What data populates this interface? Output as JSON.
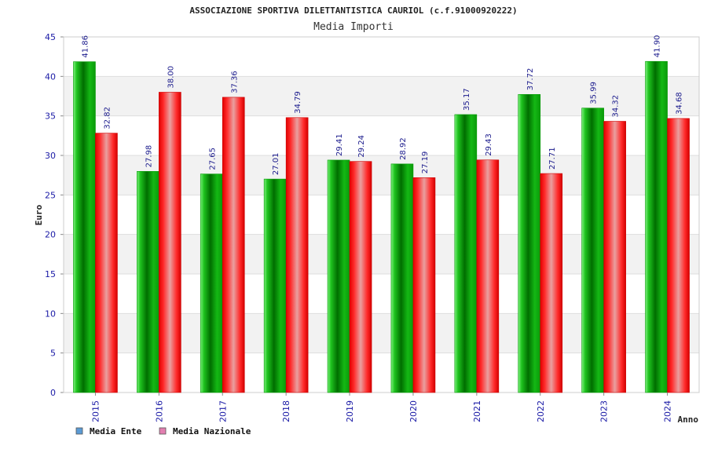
{
  "chart_data": {
    "type": "bar",
    "title": "ASSOCIAZIONE SPORTIVA DILETTANTISTICA CAURIOL (c.f.91000920222)",
    "subtitle": "Media Importi",
    "xlabel": "Anno",
    "ylabel": "Euro",
    "ylim": [
      0,
      45
    ],
    "yticks": [
      0,
      5,
      10,
      15,
      20,
      25,
      30,
      35,
      40,
      45
    ],
    "grid": true,
    "legend_position": "bottom-left",
    "categories": [
      "2015",
      "2016",
      "2017",
      "2018",
      "2019",
      "2020",
      "2021",
      "2022",
      "2023",
      "2024"
    ],
    "series": [
      {
        "name": "Media Ente",
        "color": "#00b400",
        "legend_color": "#5b9bd5",
        "labels": [
          "41.86",
          "27.98",
          "27.65",
          "27.01",
          "29.41",
          "28.92",
          "35.17",
          "37.72",
          "35.99",
          "41.90"
        ],
        "values": [
          41.86,
          27.98,
          27.65,
          27.01,
          29.41,
          28.92,
          35.17,
          37.72,
          35.99,
          41.9
        ]
      },
      {
        "name": "Media Nazionale",
        "color": "#ee1111",
        "legend_color": "#e27fb0",
        "labels": [
          "32.82",
          "38.00",
          "37.36",
          "34.79",
          "29.24",
          "27.19",
          "29.43",
          "27.71",
          "34.32",
          "34.68"
        ],
        "values": [
          32.82,
          38.0,
          37.36,
          34.79,
          29.24,
          27.19,
          29.43,
          27.71,
          34.32,
          34.68
        ]
      }
    ]
  }
}
